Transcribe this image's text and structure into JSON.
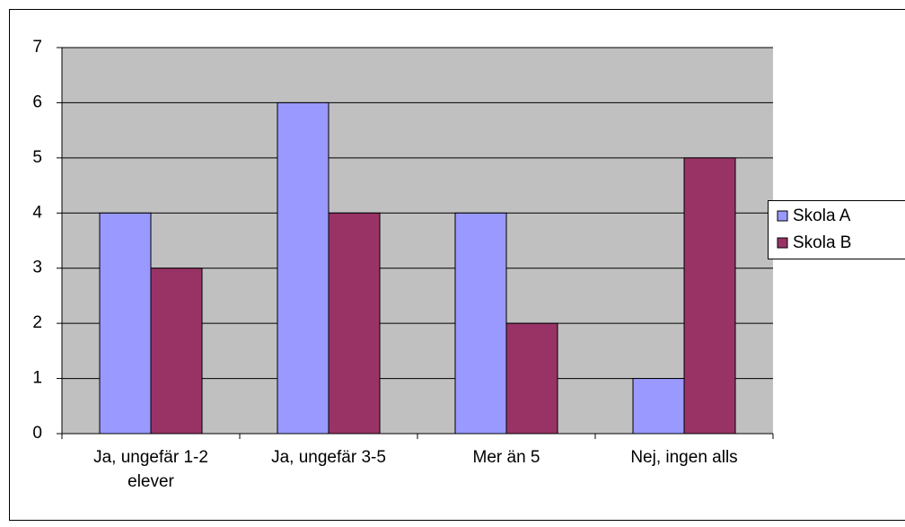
{
  "chart_data": {
    "type": "bar",
    "categories": [
      "Ja, ungefär 1-2 elever",
      "Ja, ungefär 3-5",
      "Mer än 5",
      "Nej, ingen alls"
    ],
    "series": [
      {
        "name": "Skola A",
        "color": "#9999ff",
        "values": [
          4,
          6,
          4,
          1
        ]
      },
      {
        "name": "Skola B",
        "color": "#993366",
        "values": [
          3,
          4,
          2,
          5
        ]
      }
    ],
    "ylim": [
      0,
      7
    ],
    "yticks": [
      0,
      1,
      2,
      3,
      4,
      5,
      6,
      7
    ],
    "grid": true,
    "legend": "right"
  }
}
